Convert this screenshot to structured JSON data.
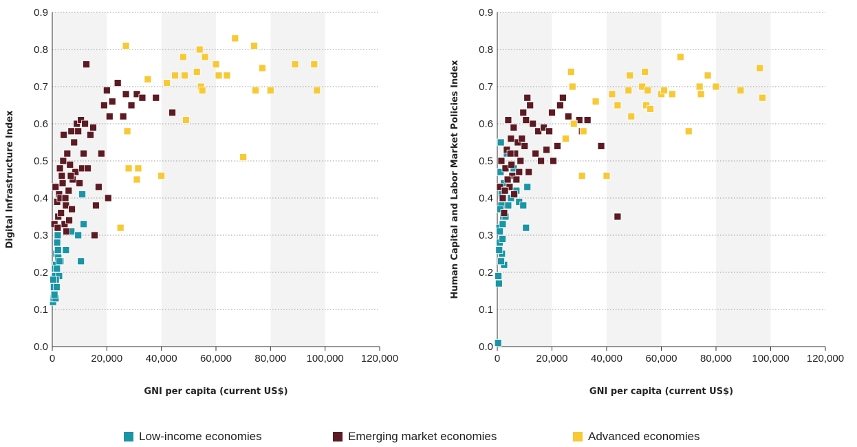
{
  "colors": {
    "low": "#1995a6",
    "emerging": "#5c1a22",
    "advanced": "#f7c934",
    "band": "#f3f3f3",
    "grid": "#9a9a9a",
    "axis": "#333333"
  },
  "legend": [
    {
      "key": "low",
      "label": "Low-income economies"
    },
    {
      "key": "emerging",
      "label": "Emerging market economies"
    },
    {
      "key": "advanced",
      "label": "Advanced economies"
    }
  ],
  "chart_data": [
    {
      "type": "scatter",
      "title": "",
      "xlabel": "GNI per capita (current US$)",
      "ylabel": "Digital Infrastructure Index",
      "xlim": [
        0,
        120000
      ],
      "ylim": [
        0,
        0.9
      ],
      "xticks": [
        "0",
        "20,000",
        "40,000",
        "60,000",
        "80,000",
        "100,000",
        "120,000"
      ],
      "yticks": [
        "0.0",
        "0.1",
        "0.2",
        "0.3",
        "0.4",
        "0.5",
        "0.6",
        "0.7",
        "0.8",
        "0.9"
      ],
      "grid": "horizontal dotted",
      "shaded_bands_x": [
        [
          0,
          20000
        ],
        [
          40000,
          60000
        ],
        [
          80000,
          100000
        ]
      ],
      "series": [
        {
          "key": "low",
          "name": "Low-income economies",
          "points": [
            [
              300,
              0.12
            ],
            [
              500,
              0.13
            ],
            [
              700,
              0.15
            ],
            [
              900,
              0.17
            ],
            [
              1000,
              0.19
            ],
            [
              1200,
              0.13
            ],
            [
              1400,
              0.22
            ],
            [
              1500,
              0.25
            ],
            [
              1800,
              0.28
            ],
            [
              2000,
              0.3
            ],
            [
              2200,
              0.24
            ],
            [
              2500,
              0.19
            ],
            [
              3000,
              0.23
            ],
            [
              1000,
              0.21
            ],
            [
              600,
              0.16
            ],
            [
              800,
              0.14
            ],
            [
              1300,
              0.18
            ],
            [
              1700,
              0.21
            ],
            [
              2100,
              0.26
            ],
            [
              2600,
              0.23
            ],
            [
              5000,
              0.26
            ],
            [
              7000,
              0.31
            ],
            [
              9500,
              0.3
            ],
            [
              10500,
              0.23
            ],
            [
              11000,
              0.41
            ],
            [
              11500,
              0.33
            ],
            [
              1600,
              0.16
            ],
            [
              400,
              0.18
            ]
          ]
        },
        {
          "key": "emerging",
          "name": "Emerging market economies",
          "points": [
            [
              800,
              0.33
            ],
            [
              1200,
              0.43
            ],
            [
              1800,
              0.39
            ],
            [
              2200,
              0.35
            ],
            [
              2500,
              0.41
            ],
            [
              3000,
              0.4
            ],
            [
              3500,
              0.46
            ],
            [
              4000,
              0.5
            ],
            [
              4200,
              0.57
            ],
            [
              4500,
              0.33
            ],
            [
              5000,
              0.38
            ],
            [
              5500,
              0.52
            ],
            [
              6000,
              0.42
            ],
            [
              6500,
              0.49
            ],
            [
              7000,
              0.58
            ],
            [
              7500,
              0.45
            ],
            [
              8000,
              0.55
            ],
            [
              8500,
              0.47
            ],
            [
              9000,
              0.6
            ],
            [
              9500,
              0.58
            ],
            [
              10000,
              0.44
            ],
            [
              10500,
              0.61
            ],
            [
              11000,
              0.48
            ],
            [
              11500,
              0.52
            ],
            [
              12000,
              0.6
            ],
            [
              12500,
              0.76
            ],
            [
              13000,
              0.48
            ],
            [
              14000,
              0.57
            ],
            [
              15000,
              0.59
            ],
            [
              15500,
              0.3
            ],
            [
              16000,
              0.38
            ],
            [
              17000,
              0.43
            ],
            [
              18000,
              0.52
            ],
            [
              19000,
              0.65
            ],
            [
              20000,
              0.69
            ],
            [
              20500,
              0.4
            ],
            [
              21000,
              0.62
            ],
            [
              22000,
              0.66
            ],
            [
              24000,
              0.71
            ],
            [
              26000,
              0.62
            ],
            [
              27000,
              0.68
            ],
            [
              29000,
              0.65
            ],
            [
              31000,
              0.68
            ],
            [
              33000,
              0.67
            ],
            [
              38000,
              0.67
            ],
            [
              44000,
              0.63
            ],
            [
              3200,
              0.36
            ],
            [
              4800,
              0.4
            ],
            [
              5200,
              0.31
            ],
            [
              6200,
              0.34
            ],
            [
              7200,
              0.37
            ],
            [
              3800,
              0.44
            ],
            [
              2800,
              0.48
            ],
            [
              6800,
              0.46
            ],
            [
              2000,
              0.32
            ]
          ]
        },
        {
          "key": "advanced",
          "name": "Advanced economies",
          "points": [
            [
              25000,
              0.32
            ],
            [
              27000,
              0.81
            ],
            [
              27500,
              0.58
            ],
            [
              28000,
              0.48
            ],
            [
              31000,
              0.45
            ],
            [
              31500,
              0.48
            ],
            [
              35000,
              0.72
            ],
            [
              40000,
              0.46
            ],
            [
              42000,
              0.71
            ],
            [
              45000,
              0.73
            ],
            [
              48000,
              0.78
            ],
            [
              48500,
              0.73
            ],
            [
              49000,
              0.61
            ],
            [
              53000,
              0.74
            ],
            [
              54000,
              0.8
            ],
            [
              54500,
              0.7
            ],
            [
              55000,
              0.69
            ],
            [
              56000,
              0.78
            ],
            [
              60000,
              0.76
            ],
            [
              61000,
              0.73
            ],
            [
              64000,
              0.73
            ],
            [
              67000,
              0.83
            ],
            [
              70000,
              0.51
            ],
            [
              74000,
              0.81
            ],
            [
              74500,
              0.69
            ],
            [
              77000,
              0.75
            ],
            [
              80000,
              0.69
            ],
            [
              89000,
              0.76
            ],
            [
              96000,
              0.76
            ],
            [
              97000,
              0.69
            ]
          ]
        }
      ]
    },
    {
      "type": "scatter",
      "title": "",
      "xlabel": "GNI per capita (current US$)",
      "ylabel": "Human Capital and Labor Market Policies Index",
      "xlim": [
        0,
        120000
      ],
      "ylim": [
        0,
        0.9
      ],
      "xticks": [
        "0",
        "20,000",
        "40,000",
        "60,000",
        "80,000",
        "100,000",
        "120,000"
      ],
      "yticks": [
        "0.0",
        "0.1",
        "0.2",
        "0.3",
        "0.4",
        "0.5",
        "0.6",
        "0.7",
        "0.8",
        "0.9"
      ],
      "grid": "horizontal dotted",
      "shaded_bands_x": [
        [
          0,
          20000
        ],
        [
          40000,
          60000
        ],
        [
          80000,
          100000
        ]
      ],
      "series": [
        {
          "key": "low",
          "name": "Low-income economies",
          "points": [
            [
              300,
              0.01
            ],
            [
              400,
              0.19
            ],
            [
              600,
              0.17
            ],
            [
              800,
              0.32
            ],
            [
              900,
              0.28
            ],
            [
              1000,
              0.43
            ],
            [
              1200,
              0.47
            ],
            [
              1300,
              0.55
            ],
            [
              1500,
              0.38
            ],
            [
              1700,
              0.25
            ],
            [
              1900,
              0.29
            ],
            [
              2200,
              0.35
            ],
            [
              2500,
              0.22
            ],
            [
              3000,
              0.35
            ],
            [
              1100,
              0.37
            ],
            [
              700,
              0.26
            ],
            [
              1600,
              0.41
            ],
            [
              2000,
              0.33
            ],
            [
              2400,
              0.44
            ],
            [
              3500,
              0.52
            ],
            [
              4000,
              0.38
            ],
            [
              5000,
              0.4
            ],
            [
              6000,
              0.48
            ],
            [
              7000,
              0.42
            ],
            [
              8000,
              0.39
            ],
            [
              9500,
              0.38
            ],
            [
              10500,
              0.32
            ],
            [
              11000,
              0.43
            ],
            [
              1400,
              0.23
            ],
            [
              900,
              0.31
            ]
          ]
        },
        {
          "key": "emerging",
          "name": "Emerging market economies",
          "points": [
            [
              1000,
              0.43
            ],
            [
              1500,
              0.5
            ],
            [
              2000,
              0.4
            ],
            [
              2500,
              0.36
            ],
            [
              3000,
              0.48
            ],
            [
              3500,
              0.53
            ],
            [
              4000,
              0.61
            ],
            [
              4500,
              0.43
            ],
            [
              5000,
              0.56
            ],
            [
              5500,
              0.46
            ],
            [
              6000,
              0.59
            ],
            [
              6500,
              0.52
            ],
            [
              7000,
              0.45
            ],
            [
              7500,
              0.55
            ],
            [
              8000,
              0.47
            ],
            [
              8500,
              0.5
            ],
            [
              9000,
              0.56
            ],
            [
              9500,
              0.63
            ],
            [
              10000,
              0.54
            ],
            [
              10500,
              0.61
            ],
            [
              11000,
              0.67
            ],
            [
              11500,
              0.47
            ],
            [
              12000,
              0.65
            ],
            [
              13000,
              0.6
            ],
            [
              14000,
              0.52
            ],
            [
              15000,
              0.58
            ],
            [
              16000,
              0.5
            ],
            [
              17000,
              0.59
            ],
            [
              18000,
              0.53
            ],
            [
              19000,
              0.58
            ],
            [
              20000,
              0.63
            ],
            [
              20500,
              0.5
            ],
            [
              22000,
              0.54
            ],
            [
              23000,
              0.65
            ],
            [
              24000,
              0.67
            ],
            [
              26000,
              0.62
            ],
            [
              28000,
              0.6
            ],
            [
              30000,
              0.61
            ],
            [
              31000,
              0.58
            ],
            [
              33000,
              0.61
            ],
            [
              38000,
              0.54
            ],
            [
              44000,
              0.35
            ],
            [
              3800,
              0.45
            ],
            [
              4800,
              0.52
            ],
            [
              2800,
              0.42
            ],
            [
              6200,
              0.41
            ],
            [
              5200,
              0.49
            ]
          ]
        },
        {
          "key": "advanced",
          "name": "Advanced economies",
          "points": [
            [
              25000,
              0.56
            ],
            [
              27000,
              0.74
            ],
            [
              27500,
              0.7
            ],
            [
              28000,
              0.6
            ],
            [
              31000,
              0.46
            ],
            [
              31500,
              0.58
            ],
            [
              36000,
              0.66
            ],
            [
              40000,
              0.46
            ],
            [
              42000,
              0.68
            ],
            [
              44000,
              0.65
            ],
            [
              48000,
              0.69
            ],
            [
              48500,
              0.73
            ],
            [
              49000,
              0.62
            ],
            [
              53000,
              0.7
            ],
            [
              54000,
              0.74
            ],
            [
              54500,
              0.65
            ],
            [
              55000,
              0.69
            ],
            [
              56000,
              0.64
            ],
            [
              60000,
              0.68
            ],
            [
              61000,
              0.69
            ],
            [
              64000,
              0.68
            ],
            [
              67000,
              0.78
            ],
            [
              70000,
              0.58
            ],
            [
              74000,
              0.7
            ],
            [
              74500,
              0.68
            ],
            [
              77000,
              0.73
            ],
            [
              80000,
              0.7
            ],
            [
              89000,
              0.69
            ],
            [
              96000,
              0.75
            ],
            [
              97000,
              0.67
            ]
          ]
        }
      ]
    }
  ]
}
